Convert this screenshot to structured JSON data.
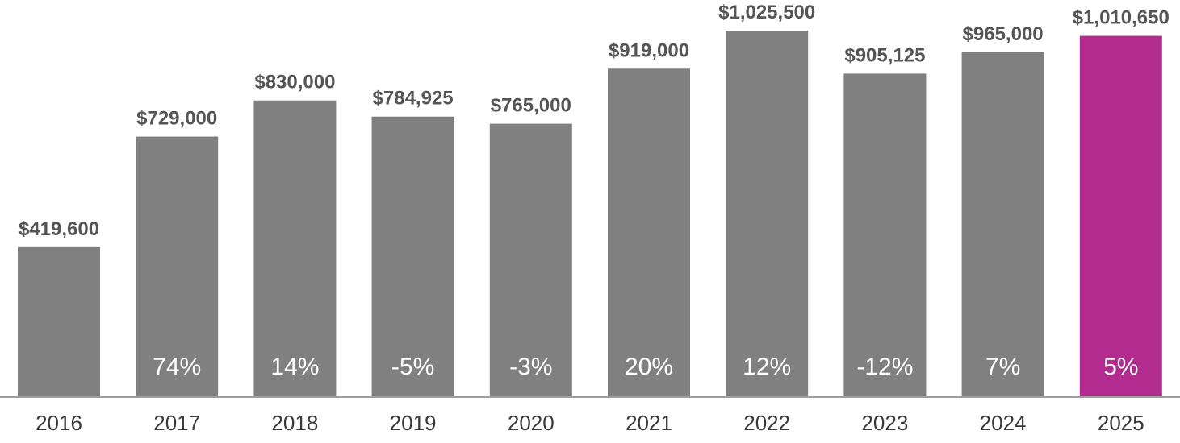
{
  "chart_data": {
    "type": "bar",
    "categories": [
      "2016",
      "2017",
      "2018",
      "2019",
      "2020",
      "2021",
      "2022",
      "2023",
      "2024",
      "2025"
    ],
    "values": [
      419600,
      729000,
      830000,
      784925,
      765000,
      919000,
      1025500,
      905125,
      965000,
      1010650
    ],
    "value_labels": [
      "$419,600",
      "$729,000",
      "$830,000",
      "$784,925",
      "$765,000",
      "$919,000",
      "$1,025,500",
      "$905,125",
      "$965,000",
      "$1,010,650"
    ],
    "change_labels": [
      "",
      "74%",
      "14%",
      "-5%",
      "-3%",
      "20%",
      "12%",
      "-12%",
      "7%",
      "5%"
    ],
    "colors": [
      "#808080",
      "#808080",
      "#808080",
      "#808080",
      "#808080",
      "#808080",
      "#808080",
      "#808080",
      "#808080",
      "#b22b8e"
    ],
    "axis_color": "#9e9e9e",
    "ylim": [
      0,
      1025500
    ],
    "grid": false,
    "legend": "none",
    "title": "",
    "xlabel": "",
    "ylabel": ""
  }
}
